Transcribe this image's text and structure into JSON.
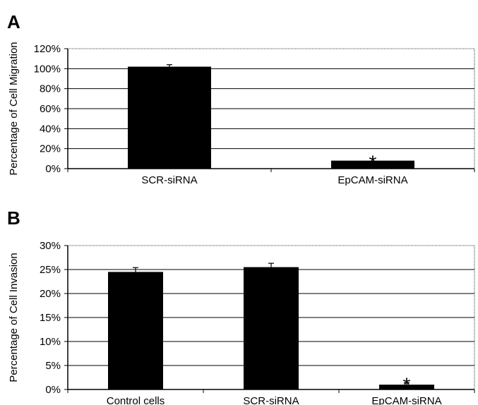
{
  "figure": {
    "bar_color": "#000000",
    "grid_color": "#000000",
    "panels": [
      {
        "letter": "A"
      },
      {
        "letter": "B"
      }
    ]
  },
  "chart_data": [
    {
      "type": "bar",
      "panel": "A",
      "title": "",
      "xlabel": "",
      "ylabel": "Percentage of Cell Migration",
      "categories": [
        "SCR-siRNA",
        "EpCAM-siRNA"
      ],
      "values": [
        102,
        8
      ],
      "errors": [
        2,
        0
      ],
      "ylim": [
        0,
        120
      ],
      "yticks": [
        "0%",
        "20%",
        "40%",
        "60%",
        "80%",
        "100%",
        "120%"
      ],
      "grid": true,
      "annotations": [
        {
          "category": "EpCAM-siRNA",
          "text": "*"
        }
      ]
    },
    {
      "type": "bar",
      "panel": "B",
      "title": "",
      "xlabel": "",
      "ylabel": "Percentage of Cell Invasion",
      "categories": [
        "Control cells",
        "SCR-siRNA",
        "EpCAM-siRNA"
      ],
      "values": [
        24.5,
        25.5,
        1
      ],
      "errors": [
        0.9,
        0.8,
        0.4
      ],
      "ylim": [
        0,
        30
      ],
      "yticks": [
        "0%",
        "5%",
        "10%",
        "15%",
        "20%",
        "25%",
        "30%"
      ],
      "grid": true,
      "annotations": [
        {
          "category": "EpCAM-siRNA",
          "text": "*"
        }
      ]
    }
  ]
}
